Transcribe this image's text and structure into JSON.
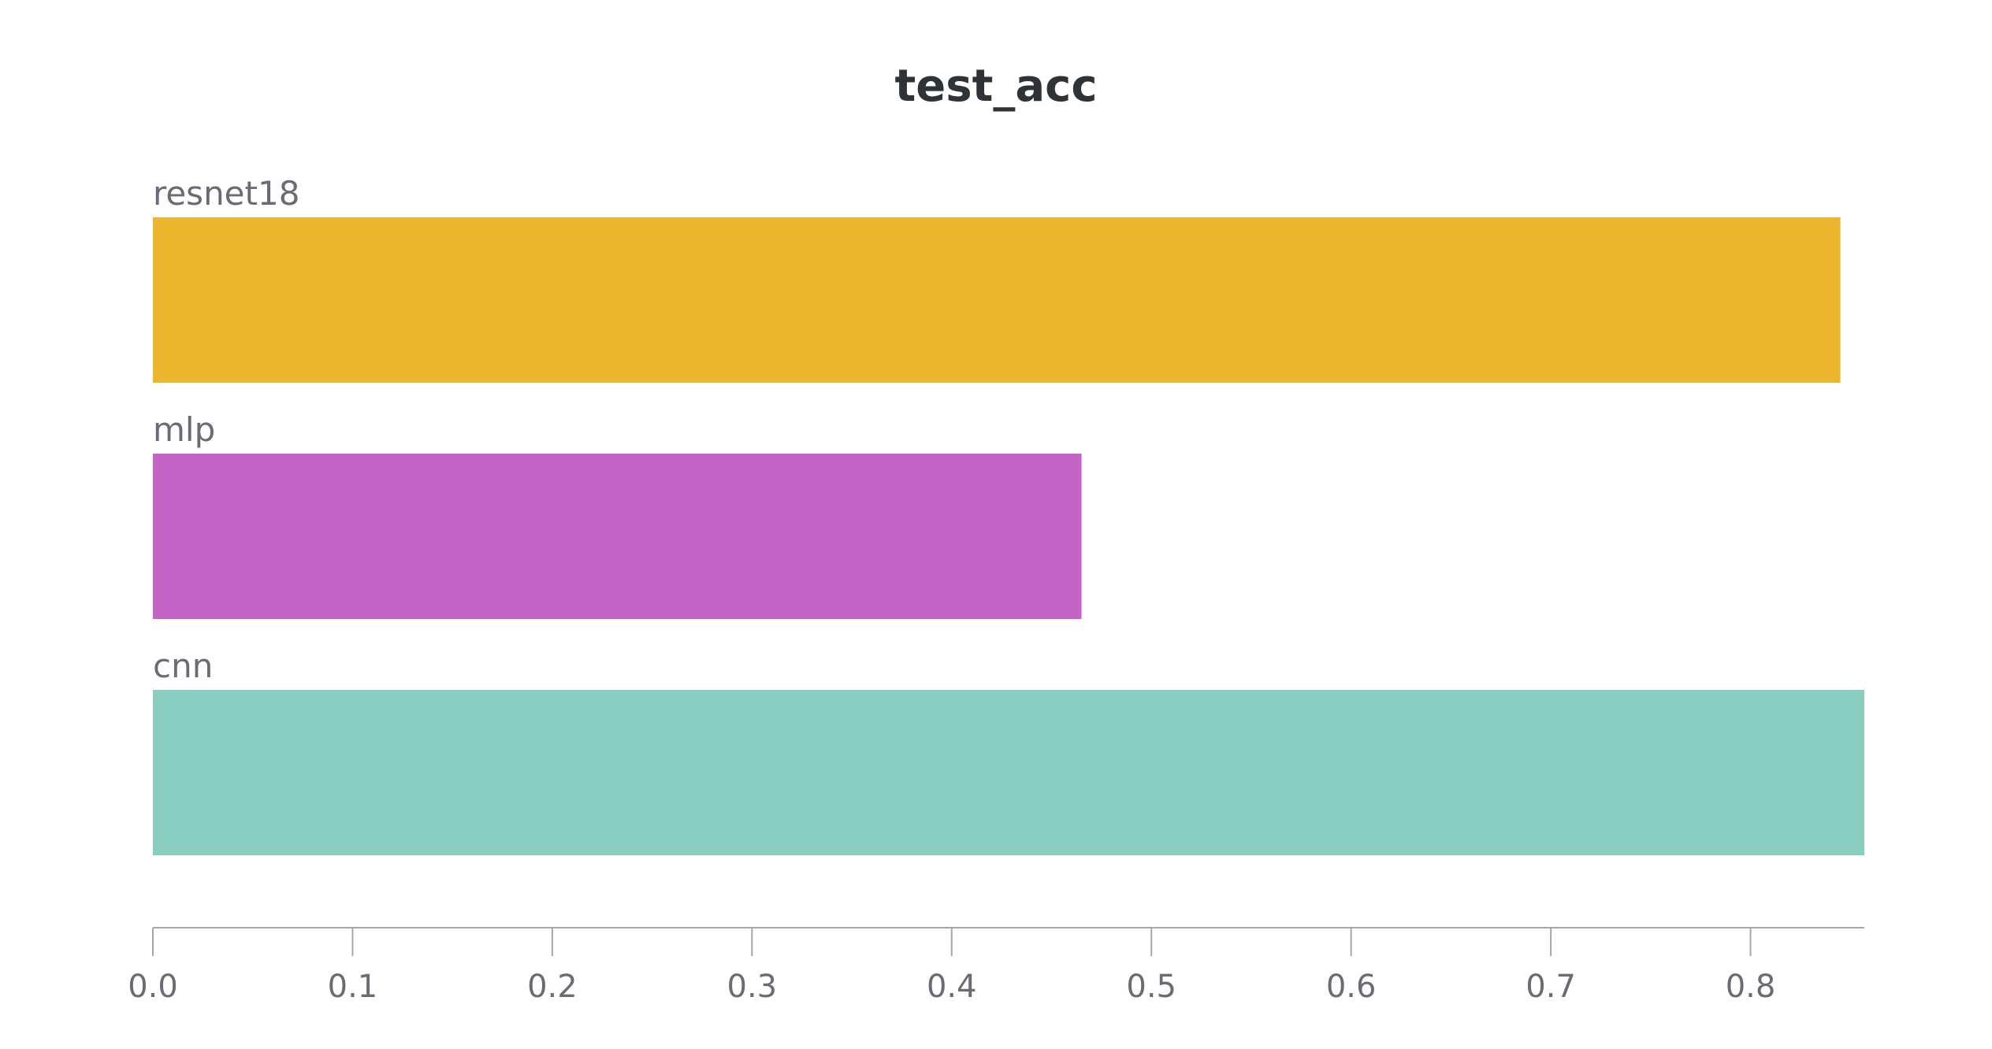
{
  "chart_data": {
    "type": "bar",
    "orientation": "horizontal",
    "title": "test_acc",
    "xlabel": "",
    "ylabel": "",
    "categories": [
      "resnet18",
      "mlp",
      "cnn"
    ],
    "values": [
      0.845,
      0.465,
      0.857
    ],
    "colors": [
      "#ecb62f",
      "#c564c7",
      "#89cec0"
    ],
    "xlim": [
      0,
      0.857
    ],
    "xticks": [
      0.0,
      0.1,
      0.2,
      0.3,
      0.4,
      0.5,
      0.6,
      0.7,
      0.8
    ],
    "xtick_labels": [
      "0.0",
      "0.1",
      "0.2",
      "0.3",
      "0.4",
      "0.5",
      "0.6",
      "0.7",
      "0.8"
    ],
    "grid": false,
    "legend": "none"
  }
}
